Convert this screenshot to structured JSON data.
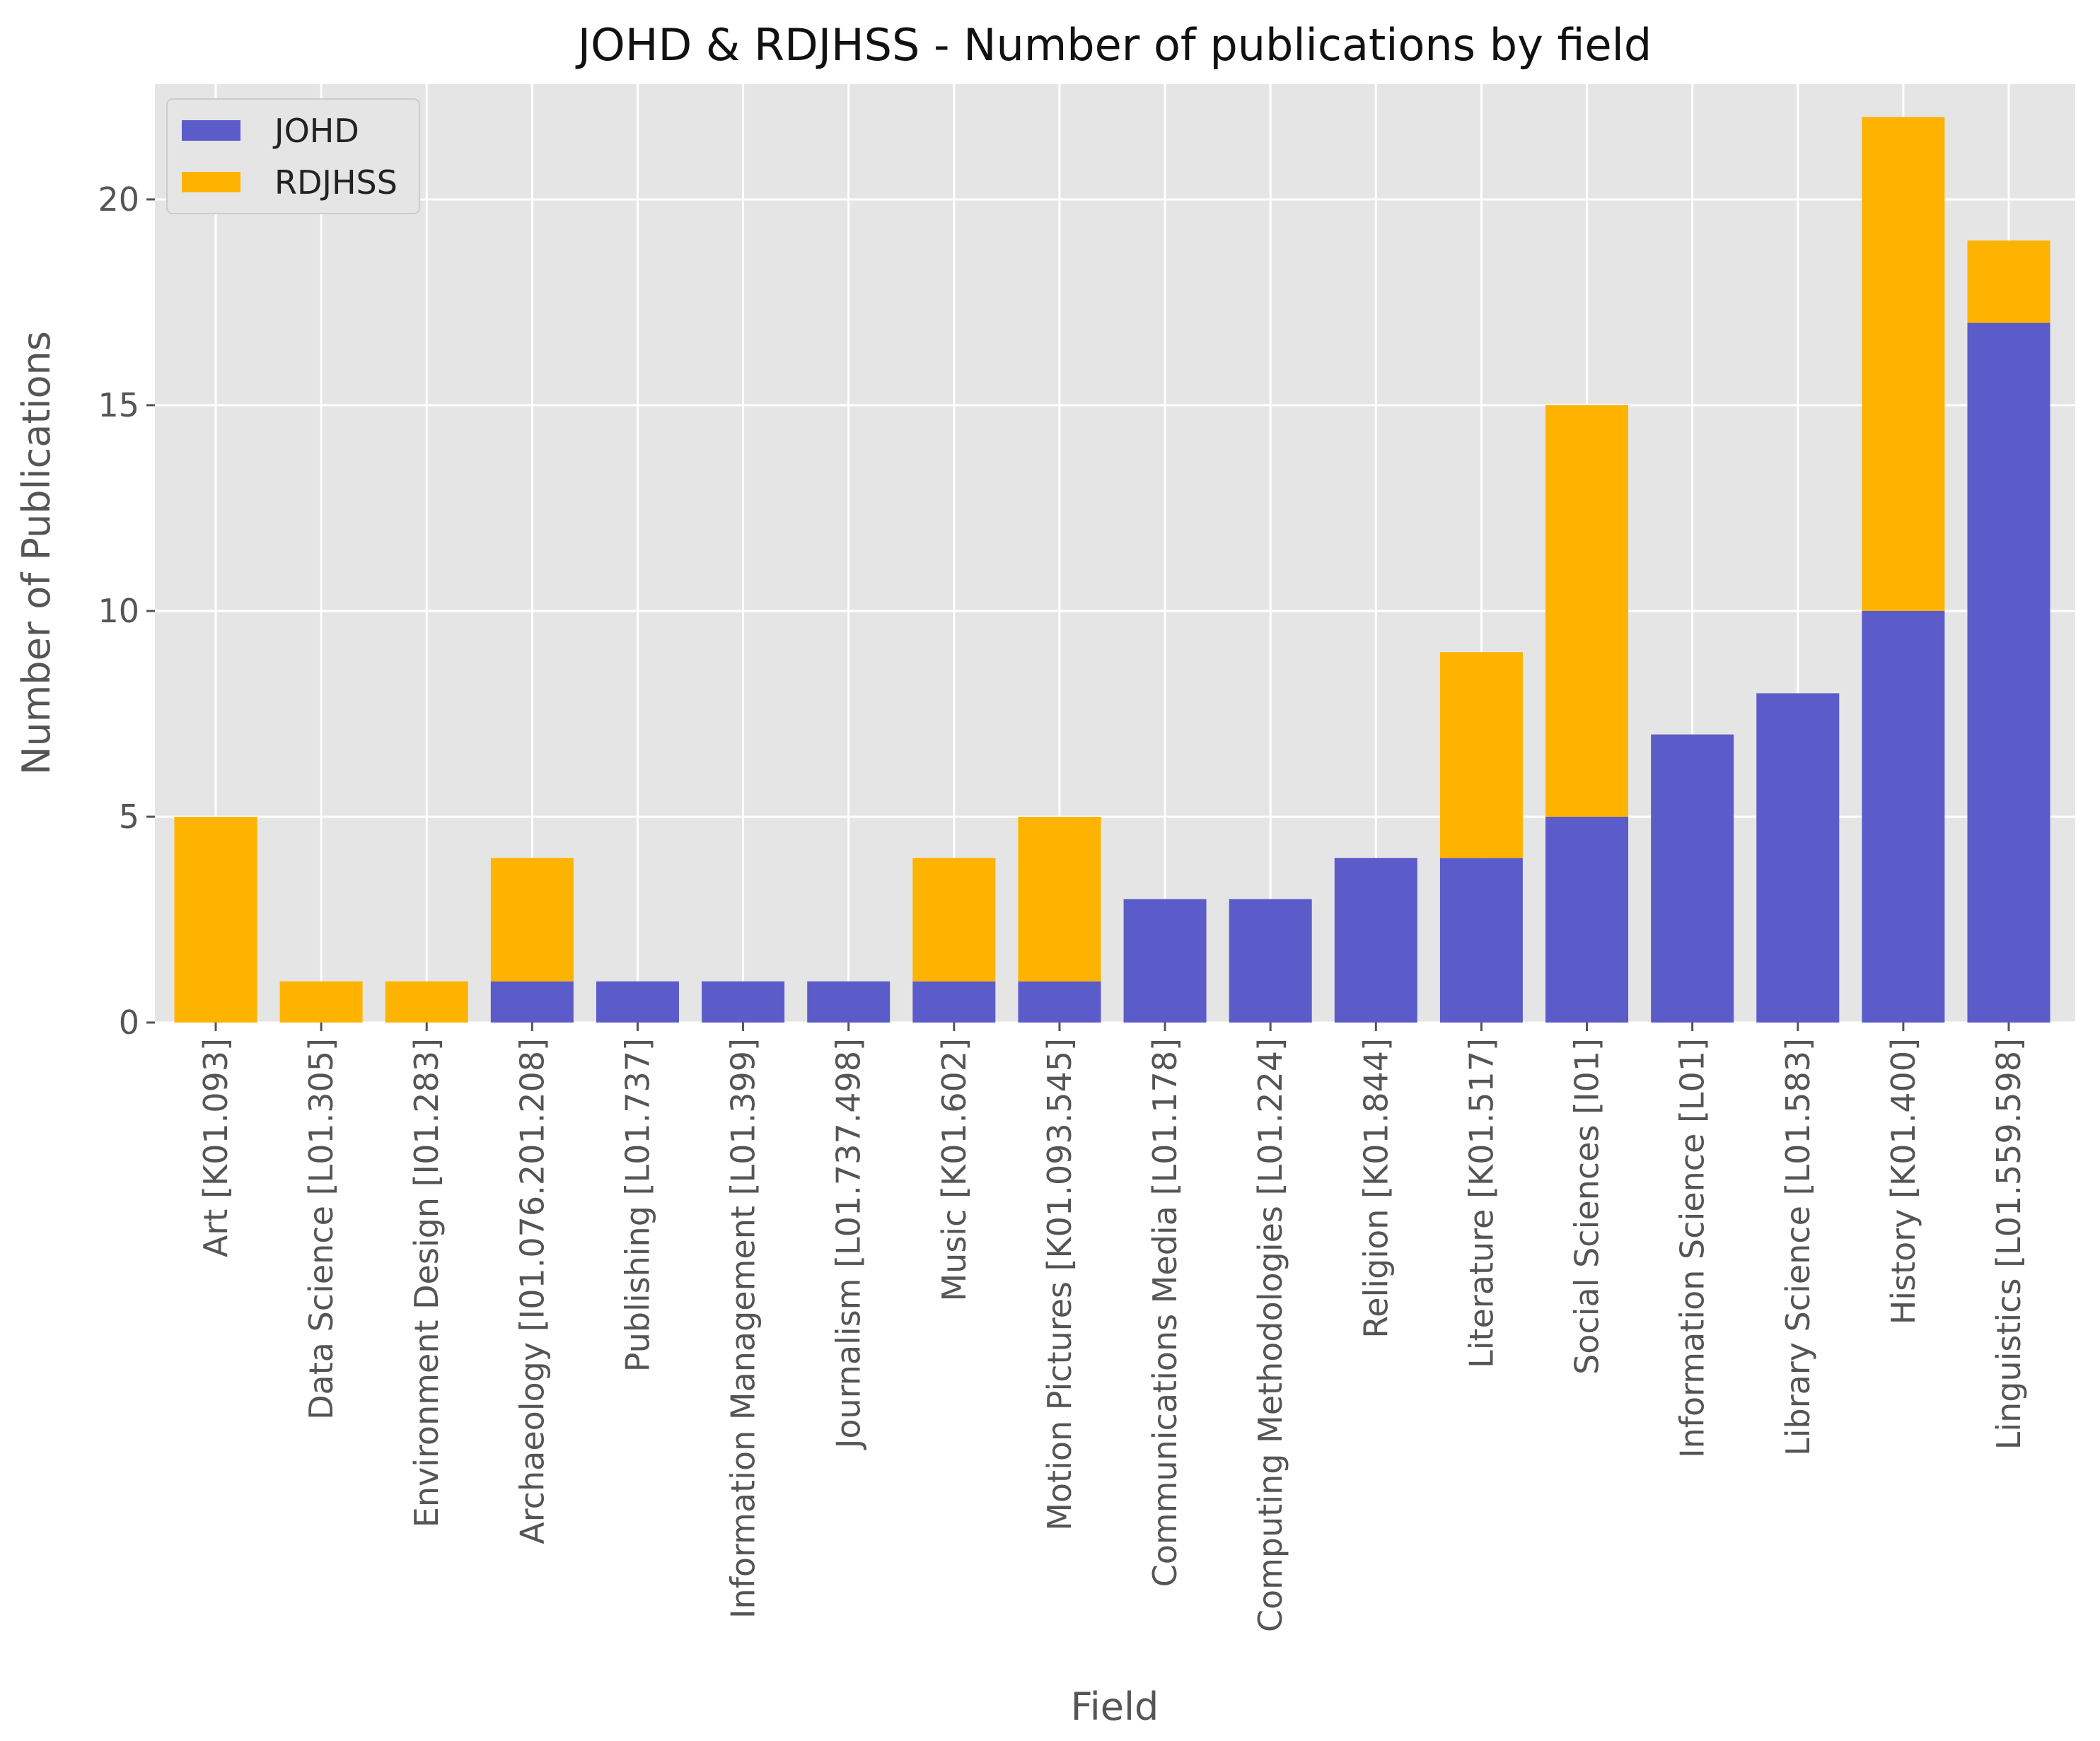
{
  "chart_data": {
    "type": "bar",
    "stacked": true,
    "title": "JOHD & RDJHSS - Number of publications by field",
    "xlabel": "Field",
    "ylabel": "Number of Publications",
    "ylim": [
      0,
      22.8
    ],
    "yticks": [
      0,
      5,
      10,
      15,
      20
    ],
    "grid": true,
    "legend_position": "top-left",
    "categories": [
      "Art [K01.093]",
      "Data Science [L01.305]",
      "Environment Design [I01.283]",
      "Archaeology [I01.076.201.208]",
      "Publishing [L01.737]",
      "Information Management [L01.399]",
      "Journalism [L01.737.498]",
      "Music [K01.602]",
      "Motion Pictures [K01.093.545]",
      "Communications Media [L01.178]",
      "Computing Methodologies [L01.224]",
      "Religion [K01.844]",
      "Literature [K01.517]",
      "Social Sciences [I01]",
      "Information Science [L01]",
      "Library Science [L01.583]",
      "History [K01.400]",
      "Linguistics [L01.559.598]"
    ],
    "series": [
      {
        "name": "JOHD",
        "color": "#5b5bc9",
        "values": [
          0,
          0,
          0,
          1,
          1,
          1,
          1,
          1,
          1,
          3,
          3,
          4,
          4,
          5,
          7,
          8,
          10,
          17
        ]
      },
      {
        "name": "RDJHSS",
        "color": "#fdb300",
        "values": [
          5,
          1,
          1,
          3,
          0,
          0,
          0,
          3,
          4,
          0,
          0,
          0,
          5,
          10,
          0,
          0,
          12,
          2
        ]
      }
    ]
  },
  "style": {
    "plot_background": "#e5e5e5",
    "grid_color": "#ffffff",
    "text_color": "#555555"
  }
}
